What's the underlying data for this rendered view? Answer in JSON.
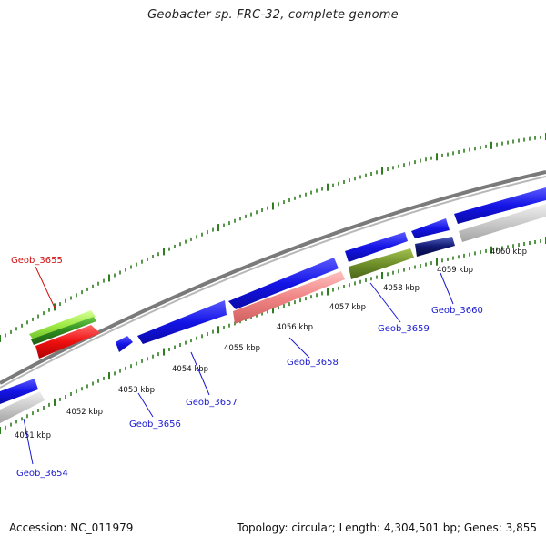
{
  "title": "Geobacter sp. FRC-32, complete genome",
  "footer": {
    "accession": "Accession: NC_011979",
    "summary": "Topology: circular; Length: 4,304,501 bp; Genes: 3,855"
  },
  "colors": {
    "backbone": "#8a8a8a",
    "ticks": "#2e7d1e",
    "gene_blue": "#1616e0",
    "gene_red": "#e01010",
    "gene_green_light": "#8ee04a",
    "gene_green_dark": "#2f8a1e",
    "gene_pink": "#f08c8c",
    "gene_olive": "#6e8f2a",
    "gene_navy": "#101870",
    "gene_gray": "#c8c8c8",
    "label_blue": "#1a1ad0",
    "label_red": "#d01010"
  },
  "scale_labels": [
    "4051 kbp",
    "4052 kbp",
    "4053 kbp",
    "4054 kbp",
    "4055 kbp",
    "4056 kbp",
    "4057 kbp",
    "4058 kbp",
    "4059 kbp",
    "4060 kbp"
  ],
  "gene_labels": [
    {
      "id": "Geob_3654",
      "color": "blue"
    },
    {
      "id": "Geob_3655",
      "color": "red"
    },
    {
      "id": "Geob_3656",
      "color": "blue"
    },
    {
      "id": "Geob_3657",
      "color": "blue"
    },
    {
      "id": "Geob_3658",
      "color": "blue"
    },
    {
      "id": "Geob_3659",
      "color": "blue"
    },
    {
      "id": "Geob_3660",
      "color": "blue"
    }
  ]
}
